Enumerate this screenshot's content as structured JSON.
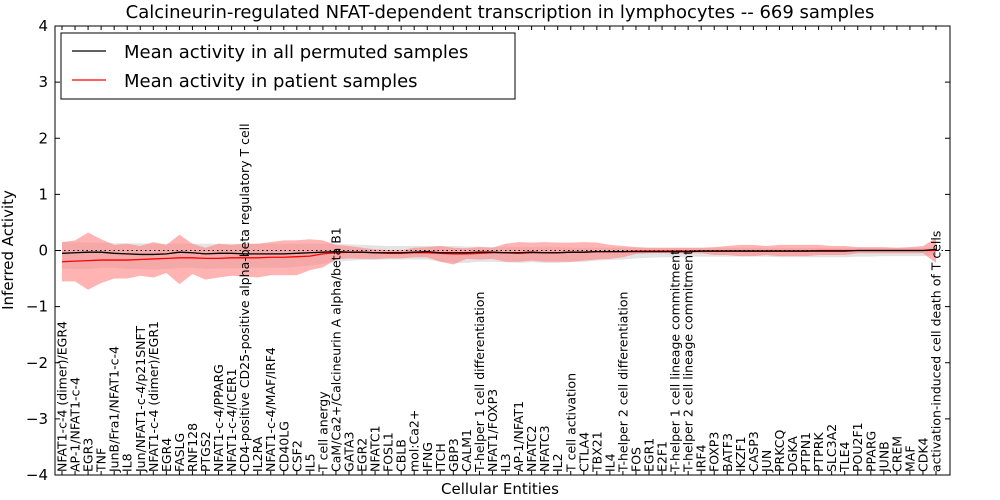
{
  "chart_data": {
    "type": "line",
    "title": "Calcineurin-regulated NFAT-dependent transcription in lymphocytes -- 669 samples",
    "xlabel": "Cellular Entities",
    "ylabel": "Inferred Activity",
    "ylim": [
      -4,
      4
    ],
    "yticks": [
      "4",
      "3",
      "2",
      "1",
      "0",
      "−1",
      "−2",
      "−3",
      "−4"
    ],
    "yticks_values": [
      4,
      3,
      2,
      1,
      0,
      -1,
      -2,
      -3,
      -4
    ],
    "legend_position": "top-left",
    "zero_line": "dotted",
    "categories": [
      "NFAT1-c-4 (dimer)/EGR4",
      "AP-1/NFAT1-c-4",
      "EGR3",
      "TNF",
      "JunB/Fra1/NFAT1-c-4",
      "IL8",
      "Jun/NFAT1-c-4/p21SNFT",
      "NFAT1-c-4 (dimer)/EGR1",
      "EGR4",
      "FASLG",
      "RNF128",
      "PTGS2",
      "NFAT1-c-4/PPARG",
      "NFAT1-c-4/ICER1",
      "CD4-positive CD25-positive alpha-beta regulatory T cell",
      "IL2RA",
      "NFAT1-c-4/MAF/IRF4",
      "CD40LG",
      "CSF2",
      "IL5",
      "T cell anergy",
      "CaM/Ca2+/Calcineurin A alpha/beta B1",
      "GATA3",
      "EGR2",
      "NFATC1",
      "FOSL1",
      "CBLB",
      "mol:Ca2+",
      "IFNG",
      "ITCH",
      "GBP3",
      "CALM1",
      "T-helper 1 cell differentiation",
      "NFAT1/FOXP3",
      "IL3",
      "AP-1/NFAT1",
      "NFATC2",
      "NFATC3",
      "IL2",
      "T cell activation",
      "CTLA4",
      "TBX21",
      "IL4",
      "T-helper 2 cell differentiation",
      "FOS",
      "EGR1",
      "E2F1",
      "T-helper 1 cell lineage commitment",
      "T-helper 2 cell lineage commitment",
      "IRF4",
      "FOXP3",
      "BATF3",
      "IKZF1",
      "CASP3",
      "JUN",
      "PRKCQ",
      "DGKA",
      "PTPN1",
      "PTPRK",
      "SLC3A2",
      "TLE4",
      "POU2F1",
      "PPARG",
      "JUNB",
      "CREM",
      "MAF",
      "CDK4",
      "activation-induced cell death of T cells"
    ],
    "series": [
      {
        "name": "Mean activity in all permuted samples",
        "color": "#000000",
        "band_color": "#cccccc",
        "values": [
          -0.05,
          -0.04,
          -0.03,
          -0.03,
          -0.05,
          -0.06,
          -0.07,
          -0.07,
          -0.06,
          -0.03,
          -0.04,
          -0.06,
          -0.05,
          -0.05,
          -0.06,
          -0.06,
          -0.06,
          -0.06,
          -0.05,
          -0.04,
          -0.03,
          -0.02,
          -0.03,
          -0.03,
          -0.04,
          -0.04,
          -0.04,
          -0.03,
          -0.02,
          -0.04,
          -0.04,
          -0.04,
          -0.03,
          -0.03,
          -0.04,
          -0.04,
          -0.03,
          -0.04,
          -0.04,
          -0.03,
          -0.03,
          -0.02,
          -0.02,
          -0.02,
          -0.02,
          -0.02,
          -0.02,
          -0.02,
          -0.02,
          -0.01,
          -0.01,
          -0.01,
          -0.01,
          -0.01,
          -0.01,
          -0.01,
          -0.01,
          -0.01,
          -0.01,
          -0.01,
          -0.01,
          0.0,
          0.0,
          0.0,
          0.0,
          0.0,
          0.0,
          0.02
        ],
        "lower": [
          -0.32,
          -0.33,
          -0.33,
          -0.31,
          -0.31,
          -0.33,
          -0.33,
          -0.34,
          -0.33,
          -0.31,
          -0.31,
          -0.33,
          -0.32,
          -0.32,
          -0.31,
          -0.31,
          -0.31,
          -0.31,
          -0.29,
          -0.27,
          -0.24,
          -0.2,
          -0.18,
          -0.17,
          -0.17,
          -0.16,
          -0.16,
          -0.16,
          -0.16,
          -0.2,
          -0.22,
          -0.22,
          -0.2,
          -0.2,
          -0.21,
          -0.22,
          -0.21,
          -0.22,
          -0.22,
          -0.21,
          -0.2,
          -0.18,
          -0.17,
          -0.16,
          -0.14,
          -0.13,
          -0.12,
          -0.12,
          -0.11,
          -0.11,
          -0.11,
          -0.11,
          -0.11,
          -0.11,
          -0.11,
          -0.12,
          -0.12,
          -0.12,
          -0.12,
          -0.12,
          -0.12,
          -0.11,
          -0.11,
          -0.1,
          -0.1,
          -0.1,
          -0.1,
          -0.08
        ],
        "upper": [
          0.15,
          0.15,
          0.14,
          0.14,
          0.13,
          0.13,
          0.13,
          0.12,
          0.12,
          0.13,
          0.12,
          0.12,
          0.12,
          0.12,
          0.12,
          0.12,
          0.12,
          0.12,
          0.12,
          0.12,
          0.12,
          0.12,
          0.11,
          0.1,
          0.09,
          0.08,
          0.08,
          0.08,
          0.08,
          0.08,
          0.08,
          0.07,
          0.07,
          0.06,
          0.06,
          0.06,
          0.06,
          0.06,
          0.06,
          0.05,
          0.05,
          0.05,
          0.05,
          0.05,
          0.05,
          0.05,
          0.05,
          0.05,
          0.05,
          0.05,
          0.05,
          0.05,
          0.05,
          0.05,
          0.05,
          0.05,
          0.05,
          0.05,
          0.05,
          0.05,
          0.05,
          0.05,
          0.05,
          0.05,
          0.05,
          0.05,
          0.05,
          0.06
        ]
      },
      {
        "name": "Mean activity in patient samples",
        "color": "#ff0000",
        "band_color": "#ff8080",
        "values": [
          -0.2,
          -0.19,
          -0.18,
          -0.17,
          -0.17,
          -0.17,
          -0.16,
          -0.15,
          -0.14,
          -0.13,
          -0.13,
          -0.14,
          -0.14,
          -0.13,
          -0.13,
          -0.13,
          -0.12,
          -0.12,
          -0.11,
          -0.1,
          -0.06,
          -0.04,
          -0.03,
          -0.03,
          -0.04,
          -0.05,
          -0.05,
          -0.04,
          -0.04,
          -0.05,
          -0.06,
          -0.06,
          -0.05,
          -0.04,
          -0.04,
          -0.05,
          -0.04,
          -0.04,
          -0.04,
          -0.03,
          -0.03,
          -0.02,
          -0.02,
          -0.02,
          -0.01,
          -0.01,
          -0.01,
          -0.01,
          -0.01,
          -0.01,
          -0.01,
          -0.01,
          -0.01,
          -0.01,
          -0.01,
          -0.01,
          -0.01,
          -0.01,
          0.0,
          0.0,
          0.0,
          0.0,
          0.0,
          0.0,
          0.0,
          0.0,
          0.0,
          0.0
        ],
        "lower": [
          -0.55,
          -0.55,
          -0.7,
          -0.58,
          -0.5,
          -0.5,
          -0.45,
          -0.48,
          -0.4,
          -0.6,
          -0.42,
          -0.52,
          -0.48,
          -0.45,
          -0.46,
          -0.48,
          -0.44,
          -0.44,
          -0.44,
          -0.35,
          -0.3,
          -0.16,
          -0.14,
          -0.15,
          -0.15,
          -0.14,
          -0.14,
          -0.12,
          -0.12,
          -0.2,
          -0.25,
          -0.15,
          -0.16,
          -0.15,
          -0.2,
          -0.2,
          -0.18,
          -0.2,
          -0.2,
          -0.2,
          -0.18,
          -0.16,
          -0.15,
          -0.12,
          -0.06,
          -0.05,
          -0.05,
          -0.05,
          -0.05,
          -0.05,
          -0.08,
          -0.08,
          -0.1,
          -0.1,
          -0.08,
          -0.1,
          -0.1,
          -0.1,
          -0.08,
          -0.08,
          -0.08,
          -0.05,
          -0.05,
          -0.05,
          -0.05,
          -0.05,
          -0.05,
          -0.22
        ],
        "upper": [
          0.15,
          0.18,
          0.32,
          0.2,
          0.1,
          0.12,
          0.08,
          0.15,
          0.1,
          0.28,
          0.12,
          0.05,
          0.12,
          0.1,
          0.12,
          0.12,
          0.15,
          0.18,
          0.18,
          0.2,
          0.18,
          0.1,
          0.08,
          0.05,
          0.02,
          0.01,
          0.0,
          0.05,
          0.06,
          0.08,
          0.05,
          0.04,
          0.06,
          0.05,
          0.12,
          0.15,
          0.14,
          0.15,
          0.14,
          0.14,
          0.15,
          0.14,
          0.1,
          0.08,
          0.06,
          0.05,
          0.05,
          0.05,
          0.05,
          0.05,
          0.06,
          0.08,
          0.1,
          0.1,
          0.08,
          0.1,
          0.1,
          0.1,
          0.1,
          0.08,
          0.08,
          0.06,
          0.06,
          0.06,
          0.05,
          0.06,
          0.08,
          0.22
        ]
      }
    ]
  }
}
